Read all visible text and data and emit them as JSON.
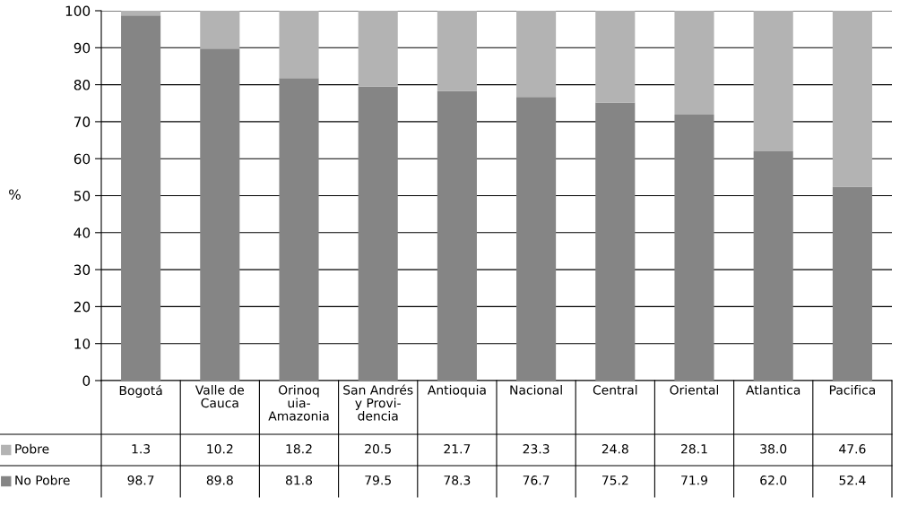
{
  "chart_data": {
    "type": "bar",
    "stacked": true,
    "ylabel": "%",
    "categories": [
      "Bogotá",
      "Valle de\nCauca",
      "Orinoq\nuia-\nAmazonia",
      "San Andrés\ny Provi-\ndencia",
      "Antioquia",
      "Nacional",
      "Central",
      "Oriental",
      "Atlantica",
      "Pacifica"
    ],
    "series": [
      {
        "name": "No Pobre",
        "color": "#858585",
        "values": [
          98.7,
          89.8,
          81.8,
          79.5,
          78.3,
          76.7,
          75.2,
          71.9,
          62.0,
          52.4
        ],
        "value_labels": [
          "98.7",
          "89.8",
          "81.8",
          "79.5",
          "78.3",
          "76.7",
          "75.2",
          "71.9",
          "62.0",
          "52.4"
        ]
      },
      {
        "name": "Pobre",
        "color": "#b3b3b3",
        "values": [
          1.3,
          10.2,
          18.2,
          20.5,
          21.7,
          23.3,
          24.8,
          28.1,
          38.0,
          47.6
        ],
        "value_labels": [
          "1.3",
          "10.2",
          "18.2",
          "20.5",
          "21.7",
          "23.3",
          "24.8",
          "28.1",
          "38.0",
          "47.6"
        ]
      }
    ],
    "ylim": [
      0,
      100
    ],
    "yticks": [
      0,
      10,
      20,
      30,
      40,
      50,
      60,
      70,
      80,
      90,
      100
    ],
    "grid": "y",
    "legend": "left"
  }
}
